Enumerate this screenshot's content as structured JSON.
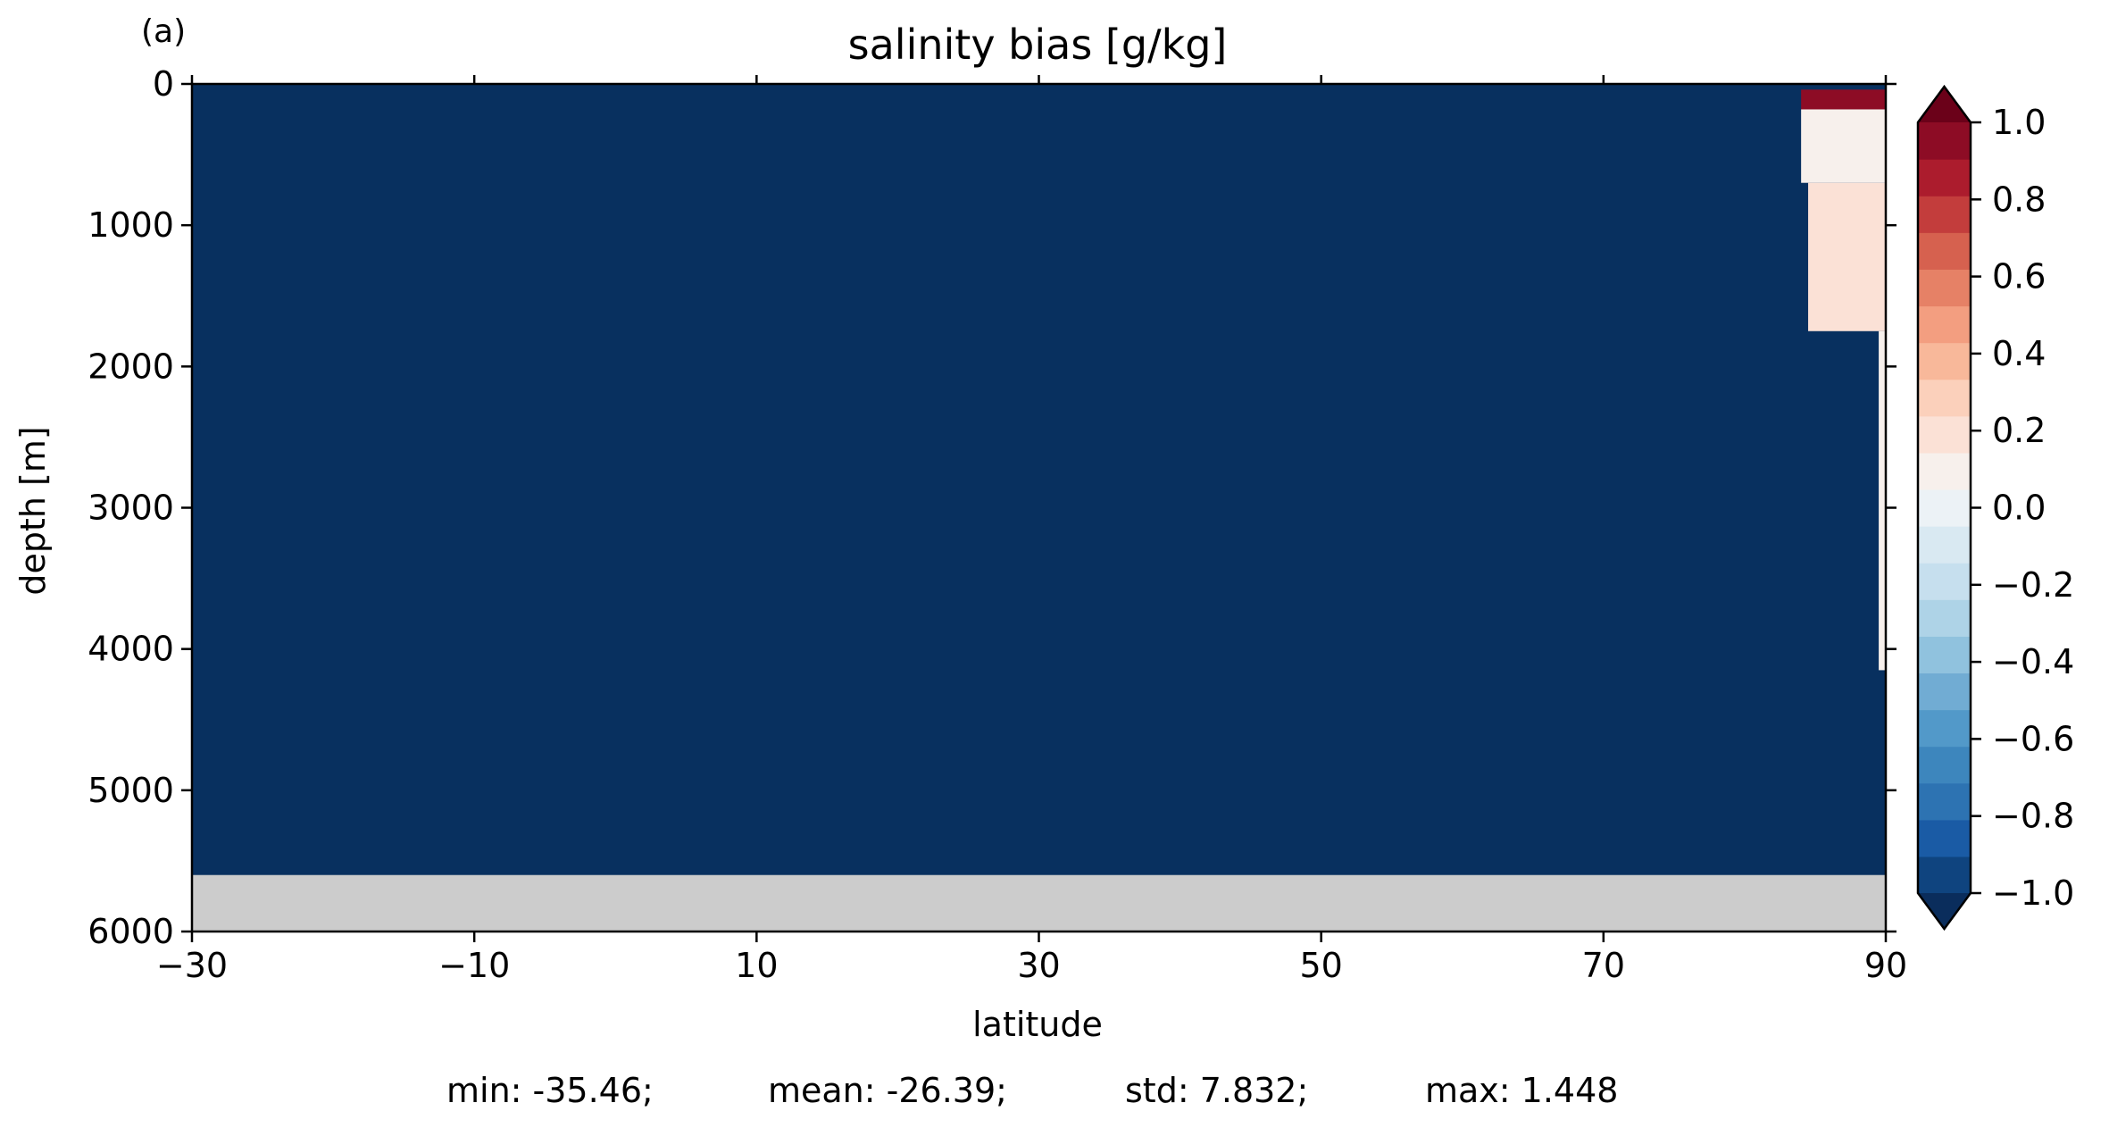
{
  "panel_label": "(a)",
  "colors": {
    "field_fill": "#08305f",
    "no_data_fill": "#cccccc",
    "axis": "#000000",
    "cbar_under": "#0a2d5c",
    "cbar_over": "#6b0119",
    "cbar_bins": [
      "#0f447f",
      "#1a5ba5",
      "#2d73b2",
      "#3d86bd",
      "#5299c9",
      "#71acd3",
      "#90c2de",
      "#aed3e7",
      "#c6dfee",
      "#d9e9f2",
      "#ecf2f6",
      "#f7f0ec",
      "#fbe1d6",
      "#fbd0bb",
      "#f8b89a",
      "#f39e80",
      "#e68166",
      "#d6614f",
      "#c33d3c",
      "#ac1c2d",
      "#8d0c25"
    ]
  },
  "chart_data": {
    "type": "heatmap",
    "title": "salinity bias [g/kg]",
    "xlabel": "latitude",
    "ylabel": "depth [m]",
    "xlim": [
      -30,
      90
    ],
    "ylim": [
      6000,
      0
    ],
    "x_ticks": [
      -30,
      -10,
      10,
      30,
      50,
      70,
      90
    ],
    "y_ticks": [
      0,
      1000,
      2000,
      3000,
      4000,
      5000,
      6000
    ],
    "x_tick_labels": [
      "−30",
      "−10",
      "10",
      "30",
      "50",
      "70",
      "90"
    ],
    "y_tick_labels": [
      "0",
      "1000",
      "2000",
      "3000",
      "4000",
      "5000",
      "6000"
    ],
    "grid": false,
    "field": {
      "background_value": "below -1.0",
      "no_data_below_depth": 5600,
      "patches": [
        {
          "lat_range": [
            84,
            90
          ],
          "depth_range": [
            40,
            180
          ],
          "bias": 0.95
        },
        {
          "lat_range": [
            84,
            90
          ],
          "depth_range": [
            180,
            700
          ],
          "bias": 0.05
        },
        {
          "lat_range": [
            84.5,
            90
          ],
          "depth_range": [
            700,
            1750
          ],
          "bias": 0.15
        },
        {
          "lat_range": [
            89.5,
            90
          ],
          "depth_range": [
            1750,
            4150
          ],
          "bias": 0.05
        }
      ]
    },
    "colorbar": {
      "vmin": -1.0,
      "vmax": 1.0,
      "extend": "both",
      "levels": 21,
      "ticks": [
        1.0,
        0.8,
        0.6,
        0.4,
        0.2,
        0.0,
        -0.2,
        -0.4,
        -0.6,
        -0.8,
        -1.0
      ],
      "tick_labels": [
        "1.0",
        "0.8",
        "0.6",
        "0.4",
        "0.2",
        "0.0",
        "−0.2",
        "−0.4",
        "−0.6",
        "−0.8",
        "−1.0"
      ]
    },
    "stats": {
      "min_text": "min: -35.46;",
      "mean_text": "mean: -26.39;",
      "std_text": "std: 7.832;",
      "max_text": "max: 1.448"
    }
  }
}
